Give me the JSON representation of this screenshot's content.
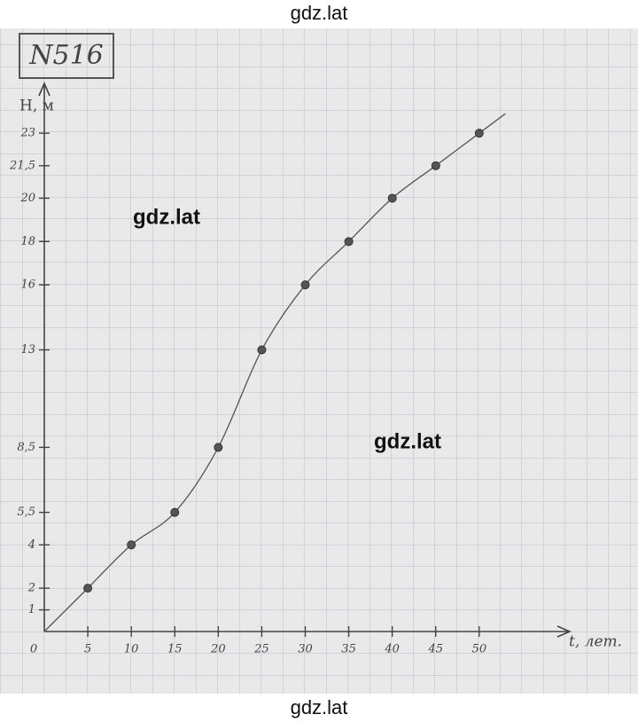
{
  "chart_data": {
    "type": "line",
    "title": "N516",
    "ylabel": "H, м",
    "xlabel": "t, лет.",
    "x": [
      5,
      10,
      15,
      20,
      25,
      30,
      35,
      40,
      45,
      50
    ],
    "series": [
      {
        "color": "#555555",
        "values": [
          2,
          4,
          5.5,
          8.5,
          13,
          16,
          18,
          20,
          21.5,
          23
        ]
      }
    ],
    "xlim": [
      0,
      60
    ],
    "ylim": [
      0,
      25.3
    ],
    "xticks": [
      0,
      5,
      10,
      15,
      20,
      25,
      30,
      35,
      40,
      45,
      50
    ],
    "yticks": [
      1,
      2,
      4,
      {
        "value": 5.5,
        "label": "5,5"
      },
      {
        "value": 8.5,
        "label": "8,5"
      },
      13,
      16,
      18,
      20,
      {
        "value": 21.5,
        "label": "21,5"
      },
      23
    ]
  },
  "watermarks": [
    "gdz.lat",
    "gdz.lat",
    "gdz.lat",
    "gdz.lat"
  ]
}
